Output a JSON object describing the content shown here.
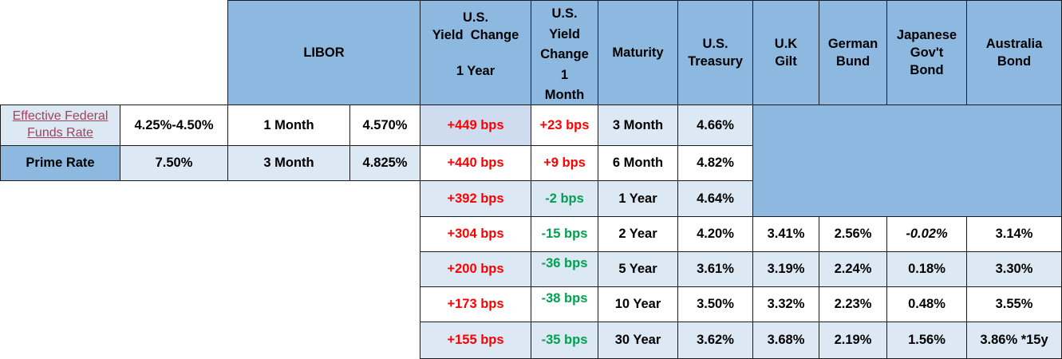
{
  "headers": {
    "libor": "LIBOR",
    "yield_change_1y": [
      "U.S.",
      "Yield  Change",
      "",
      "1 Year"
    ],
    "yield_change_1m": [
      "U.S.",
      "Yield",
      "Change",
      "1",
      "Month"
    ],
    "maturity": "Maturity",
    "us_treasury": [
      "U.S.",
      "Treasury"
    ],
    "uk_gilt": [
      "U.K",
      "Gilt"
    ],
    "german_bund": [
      "German",
      "Bund"
    ],
    "japanese_bond": [
      "Japanese",
      "Gov't",
      "Bond"
    ],
    "australia_bond": [
      "Australia",
      "Bond"
    ]
  },
  "rates": {
    "effective_fed_label": [
      "Effective Federal",
      "Funds Rate"
    ],
    "effective_fed_value": "4.25%-4.50%",
    "prime_label": "Prime Rate",
    "prime_value": "7.50%"
  },
  "libor": [
    {
      "term": "1 Month",
      "rate": "4.570%"
    },
    {
      "term": "3 Month",
      "rate": "4.825%"
    }
  ],
  "rows": [
    {
      "y1": "+449 bps",
      "m1": "+23 bps",
      "m1_color": "red",
      "maturity": "3 Month",
      "treasury": "4.66%"
    },
    {
      "y1": "+440 bps",
      "m1": "+9 bps",
      "m1_color": "red",
      "maturity": "6 Month",
      "treasury": "4.82%"
    },
    {
      "y1": "+392 bps",
      "m1": "-2 bps",
      "m1_color": "green",
      "maturity": "1 Year",
      "treasury": "4.64%"
    },
    {
      "y1": "+304 bps",
      "m1": "-15 bps",
      "m1_color": "green",
      "maturity": "2 Year",
      "treasury": "4.20%",
      "gilt": "3.41%",
      "bund": "2.56%",
      "jgb": "-0.02%",
      "aus": "3.14%"
    },
    {
      "y1": "+200 bps",
      "m1": "-36 bps",
      "m1_color": "green",
      "maturity": "5 Year",
      "treasury": "3.61%",
      "gilt": "3.19%",
      "bund": "2.24%",
      "jgb": "0.18%",
      "aus": "3.30%"
    },
    {
      "y1": "+173 bps",
      "m1": "-38 bps",
      "m1_color": "green",
      "maturity": "10 Year",
      "treasury": "3.50%",
      "gilt": "3.32%",
      "bund": "2.23%",
      "jgb": "0.48%",
      "aus": "3.55%"
    },
    {
      "y1": "+155 bps",
      "m1": "-35 bps",
      "m1_color": "green",
      "maturity": "30 Year",
      "treasury": "3.62%",
      "gilt": "3.68%",
      "bund": "2.19%",
      "jgb": "1.56%",
      "aus": "3.86% *15y"
    }
  ],
  "colors": {
    "header": "#8db9e0",
    "light_row": "#dce8f4",
    "positive": "#ff0000",
    "negative": "#00a050",
    "link": "#a0445a"
  }
}
